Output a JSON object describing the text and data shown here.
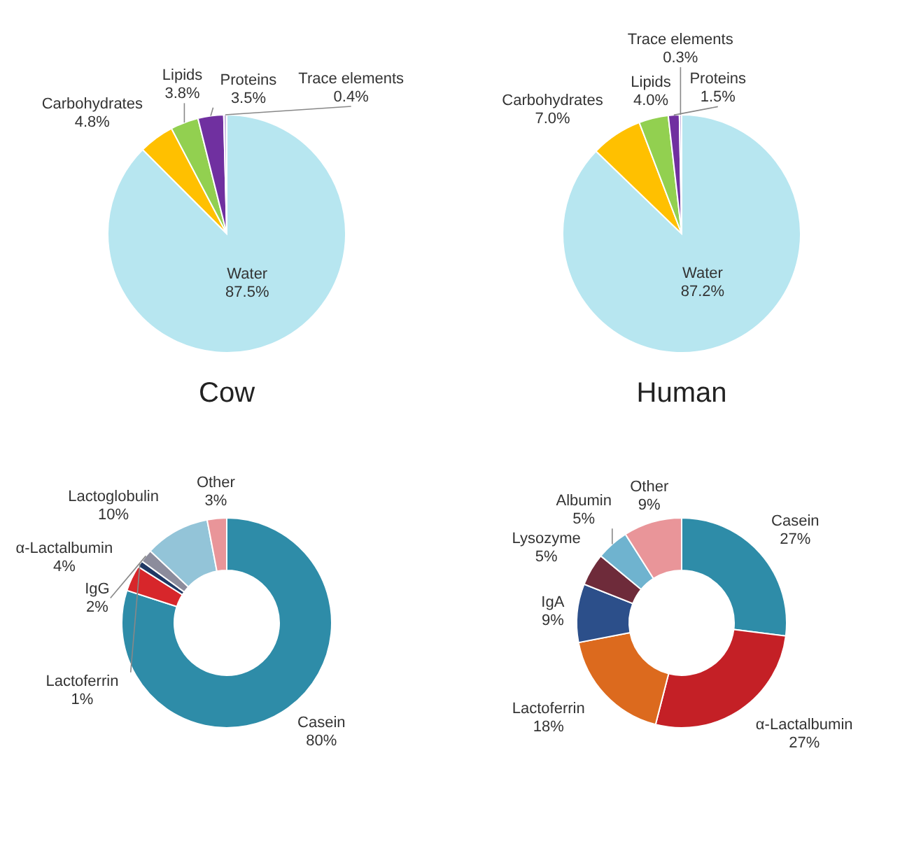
{
  "chart_data": [
    {
      "type": "pie",
      "title": "Cow",
      "categories": [
        "Water",
        "Carbohydrates",
        "Lipids",
        "Proteins",
        "Trace elements"
      ],
      "values": [
        87.5,
        4.8,
        3.8,
        3.5,
        0.4
      ],
      "value_labels": [
        "87.5%",
        "4.8%",
        "3.8%",
        "3.5%",
        "0.4%"
      ],
      "colors": [
        "#b7e6f0",
        "#ffc000",
        "#92d050",
        "#7030a0",
        "#c9b8e0"
      ]
    },
    {
      "type": "pie",
      "title": "Human",
      "categories": [
        "Water",
        "Carbohydrates",
        "Lipids",
        "Proteins",
        "Trace elements"
      ],
      "values": [
        87.2,
        7.0,
        4.0,
        1.5,
        0.3
      ],
      "value_labels": [
        "87.2%",
        "7.0%",
        "4.0%",
        "1.5%",
        "0.3%"
      ],
      "colors": [
        "#b7e6f0",
        "#ffc000",
        "#92d050",
        "#7030a0",
        "#c9b8e0"
      ]
    },
    {
      "type": "donut",
      "categories": [
        "Casein",
        "α-Lactalbumin",
        "Lactoferrin",
        "IgG",
        "Lactoglobulin",
        "Other"
      ],
      "values": [
        80,
        4,
        1,
        2,
        10,
        3
      ],
      "value_labels": [
        "80%",
        "4%",
        "1%",
        "2%",
        "10%",
        "3%"
      ],
      "colors": [
        "#2e8ca8",
        "#d7262b",
        "#1f3864",
        "#8c8c9c",
        "#93c4d8",
        "#e99599"
      ]
    },
    {
      "type": "donut",
      "categories": [
        "Casein",
        "α-Lactalbumin",
        "Lactoferrin",
        "IgA",
        "Lysozyme",
        "Albumin",
        "Other"
      ],
      "values": [
        27,
        27,
        18,
        9,
        5,
        5,
        9
      ],
      "value_labels": [
        "27%",
        "27%",
        "18%",
        "9%",
        "5%",
        "5%",
        "9%"
      ],
      "colors": [
        "#2e8ca8",
        "#c42026",
        "#dc6a1e",
        "#2c4f8a",
        "#6e2b3a",
        "#6fb3cf",
        "#e99599"
      ]
    }
  ]
}
